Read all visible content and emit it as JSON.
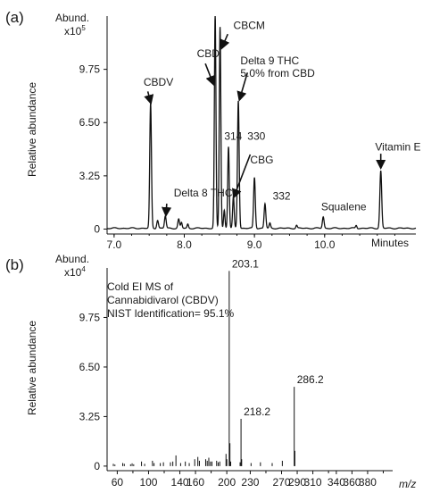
{
  "chart_data": [
    {
      "type": "line",
      "panel_label": "(a)",
      "y_unit_line1": "Abund.",
      "y_unit_line2": "x10",
      "y_unit_exp": "5",
      "ylabel": "Relative abundance",
      "xlabel": "Minutes",
      "xlim": [
        6.9,
        11.3
      ],
      "ylim": [
        -0.3,
        13.0
      ],
      "x_ticks": [
        {
          "value": 7.0,
          "label": "7.0"
        },
        {
          "value": 8.0,
          "label": "8.0"
        },
        {
          "value": 9.0,
          "label": "9.0"
        },
        {
          "value": 10.0,
          "label": "10.0"
        }
      ],
      "y_ticks": [
        {
          "value": 0,
          "label": "0"
        },
        {
          "value": 3.25,
          "label": "3.25"
        },
        {
          "value": 6.5,
          "label": "6.50"
        },
        {
          "value": 9.75,
          "label": "9.75"
        }
      ],
      "baseline": 0.05,
      "peaks": [
        {
          "x": 7.52,
          "y": 7.6,
          "w": 0.012
        },
        {
          "x": 7.62,
          "y": 0.5,
          "w": 0.012
        },
        {
          "x": 7.73,
          "y": 0.75,
          "w": 0.012
        },
        {
          "x": 7.92,
          "y": 0.55,
          "w": 0.012
        },
        {
          "x": 7.96,
          "y": 0.35,
          "w": 0.01
        },
        {
          "x": 8.05,
          "y": 0.25,
          "w": 0.01
        },
        {
          "x": 8.44,
          "y": 13.0,
          "w": 0.011
        },
        {
          "x": 8.51,
          "y": 12.3,
          "w": 0.011
        },
        {
          "x": 8.57,
          "y": 1.1,
          "w": 0.01
        },
        {
          "x": 8.63,
          "y": 5.0,
          "w": 0.011
        },
        {
          "x": 8.7,
          "y": 1.9,
          "w": 0.011
        },
        {
          "x": 8.77,
          "y": 7.8,
          "w": 0.012
        },
        {
          "x": 9.0,
          "y": 3.1,
          "w": 0.012
        },
        {
          "x": 9.15,
          "y": 1.5,
          "w": 0.012
        },
        {
          "x": 9.22,
          "y": 0.3,
          "w": 0.01
        },
        {
          "x": 9.6,
          "y": 0.18,
          "w": 0.01
        },
        {
          "x": 9.98,
          "y": 0.7,
          "w": 0.012
        },
        {
          "x": 10.45,
          "y": 0.18,
          "w": 0.01
        },
        {
          "x": 10.8,
          "y": 3.5,
          "w": 0.013
        }
      ],
      "annotations": [
        {
          "text": "CBDV",
          "tx": 7.42,
          "ty": 8.75,
          "ax": [
            7.48,
            8.4,
            7.52,
            7.75
          ]
        },
        {
          "text": "Delta 8 THC",
          "tx": 7.85,
          "ty": 2.0,
          "ax": [
            7.75,
            1.55,
            7.74,
            0.9
          ]
        },
        {
          "text": "CBD",
          "tx": 8.18,
          "ty": 10.5,
          "ax": [
            8.3,
            10.1,
            8.41,
            8.9
          ]
        },
        {
          "text": "CBCM",
          "tx": 8.7,
          "ty": 12.2,
          "ax": [
            8.62,
            11.9,
            8.54,
            11.1
          ]
        },
        {
          "text": "Delta 9 THC",
          "tx": 8.8,
          "ty": 10.05,
          "ax": [
            8.9,
            9.55,
            8.79,
            7.95
          ]
        },
        {
          "text": "5.0% from CBD",
          "tx": 8.8,
          "ty": 9.3
        },
        {
          "text": "314",
          "tx": 8.57,
          "ty": 5.45
        },
        {
          "text": "330",
          "tx": 8.9,
          "ty": 5.45
        },
        {
          "text": "CBG",
          "tx": 8.94,
          "ty": 4.0,
          "ax": [
            8.94,
            4.55,
            8.71,
            2.0
          ]
        },
        {
          "text": "332",
          "tx": 9.26,
          "ty": 1.8
        },
        {
          "text": "Squalene",
          "tx": 9.95,
          "ty": 1.15
        },
        {
          "text": "Vitamin E α",
          "tx": 10.72,
          "ty": 4.8,
          "ax": [
            10.8,
            4.6,
            10.8,
            3.8
          ]
        }
      ]
    },
    {
      "type": "bar",
      "panel_label": "(b)",
      "y_unit_line1": "Abund.",
      "y_unit_line2": "x10",
      "y_unit_exp": "4",
      "ylabel": "Relative abundance",
      "xlabel": "m/z",
      "xlim": [
        47,
        412
      ],
      "ylim": [
        -0.3,
        13.0
      ],
      "x_ticks": [
        {
          "value": 60,
          "label": "60"
        },
        {
          "value": 100,
          "label": "100"
        },
        {
          "value": 140,
          "label": "140"
        },
        {
          "value": 160,
          "label": "160"
        },
        {
          "value": 200,
          "label": "200"
        },
        {
          "value": 230,
          "label": "230"
        },
        {
          "value": 270,
          "label": "270"
        },
        {
          "value": 290,
          "label": "290"
        },
        {
          "value": 310,
          "label": "310"
        },
        {
          "value": 340,
          "label": "340"
        },
        {
          "value": 360,
          "label": "360"
        },
        {
          "value": 380,
          "label": "380"
        }
      ],
      "minor_x_ticks": [
        80,
        120,
        180,
        250,
        330,
        400
      ],
      "y_ticks": [
        {
          "value": 0,
          "label": "0"
        },
        {
          "value": 3.25,
          "label": "3.25"
        },
        {
          "value": 6.5,
          "label": "6.50"
        },
        {
          "value": 9.75,
          "label": "9.75"
        }
      ],
      "caption_line1": "Cold EI MS of",
      "caption_line2": "Cannabidivarol (CBDV)",
      "caption_line3": "NIST Identification= 95.1%",
      "peaks": [
        {
          "mz": 55,
          "y": 0.15
        },
        {
          "mz": 57,
          "y": 0.1
        },
        {
          "mz": 67,
          "y": 0.2
        },
        {
          "mz": 69,
          "y": 0.15
        },
        {
          "mz": 77,
          "y": 0.12
        },
        {
          "mz": 79,
          "y": 0.18
        },
        {
          "mz": 81,
          "y": 0.12
        },
        {
          "mz": 91,
          "y": 0.3
        },
        {
          "mz": 95,
          "y": 0.15
        },
        {
          "mz": 105,
          "y": 0.35
        },
        {
          "mz": 107,
          "y": 0.2
        },
        {
          "mz": 115,
          "y": 0.2
        },
        {
          "mz": 119,
          "y": 0.25
        },
        {
          "mz": 128,
          "y": 0.25
        },
        {
          "mz": 131,
          "y": 0.3
        },
        {
          "mz": 135,
          "y": 0.7
        },
        {
          "mz": 141,
          "y": 0.2
        },
        {
          "mz": 147,
          "y": 0.3
        },
        {
          "mz": 152,
          "y": 0.2
        },
        {
          "mz": 159,
          "y": 0.45
        },
        {
          "mz": 163,
          "y": 0.6
        },
        {
          "mz": 165,
          "y": 0.35
        },
        {
          "mz": 173,
          "y": 0.45
        },
        {
          "mz": 175,
          "y": 0.35
        },
        {
          "mz": 177,
          "y": 0.55
        },
        {
          "mz": 179,
          "y": 0.3
        },
        {
          "mz": 181,
          "y": 0.3
        },
        {
          "mz": 187,
          "y": 0.35
        },
        {
          "mz": 189,
          "y": 0.25
        },
        {
          "mz": 191,
          "y": 0.3
        },
        {
          "mz": 199,
          "y": 0.8
        },
        {
          "mz": 200,
          "y": 0.45
        },
        {
          "mz": 203.1,
          "y": 12.8
        },
        {
          "mz": 204,
          "y": 1.5
        },
        {
          "mz": 205,
          "y": 0.3
        },
        {
          "mz": 217,
          "y": 0.25
        },
        {
          "mz": 218.2,
          "y": 3.1
        },
        {
          "mz": 219,
          "y": 0.45
        },
        {
          "mz": 231,
          "y": 0.2
        },
        {
          "mz": 243,
          "y": 0.25
        },
        {
          "mz": 258,
          "y": 0.2
        },
        {
          "mz": 271,
          "y": 0.35
        },
        {
          "mz": 286.2,
          "y": 5.2
        },
        {
          "mz": 287,
          "y": 1.0
        }
      ],
      "labels": [
        {
          "text": "203.1",
          "mz": 203.1,
          "y": 12.8
        },
        {
          "text": "218.2",
          "mz": 218.2,
          "y": 3.1
        },
        {
          "text": "286.2",
          "mz": 286.2,
          "y": 5.2
        }
      ]
    }
  ]
}
